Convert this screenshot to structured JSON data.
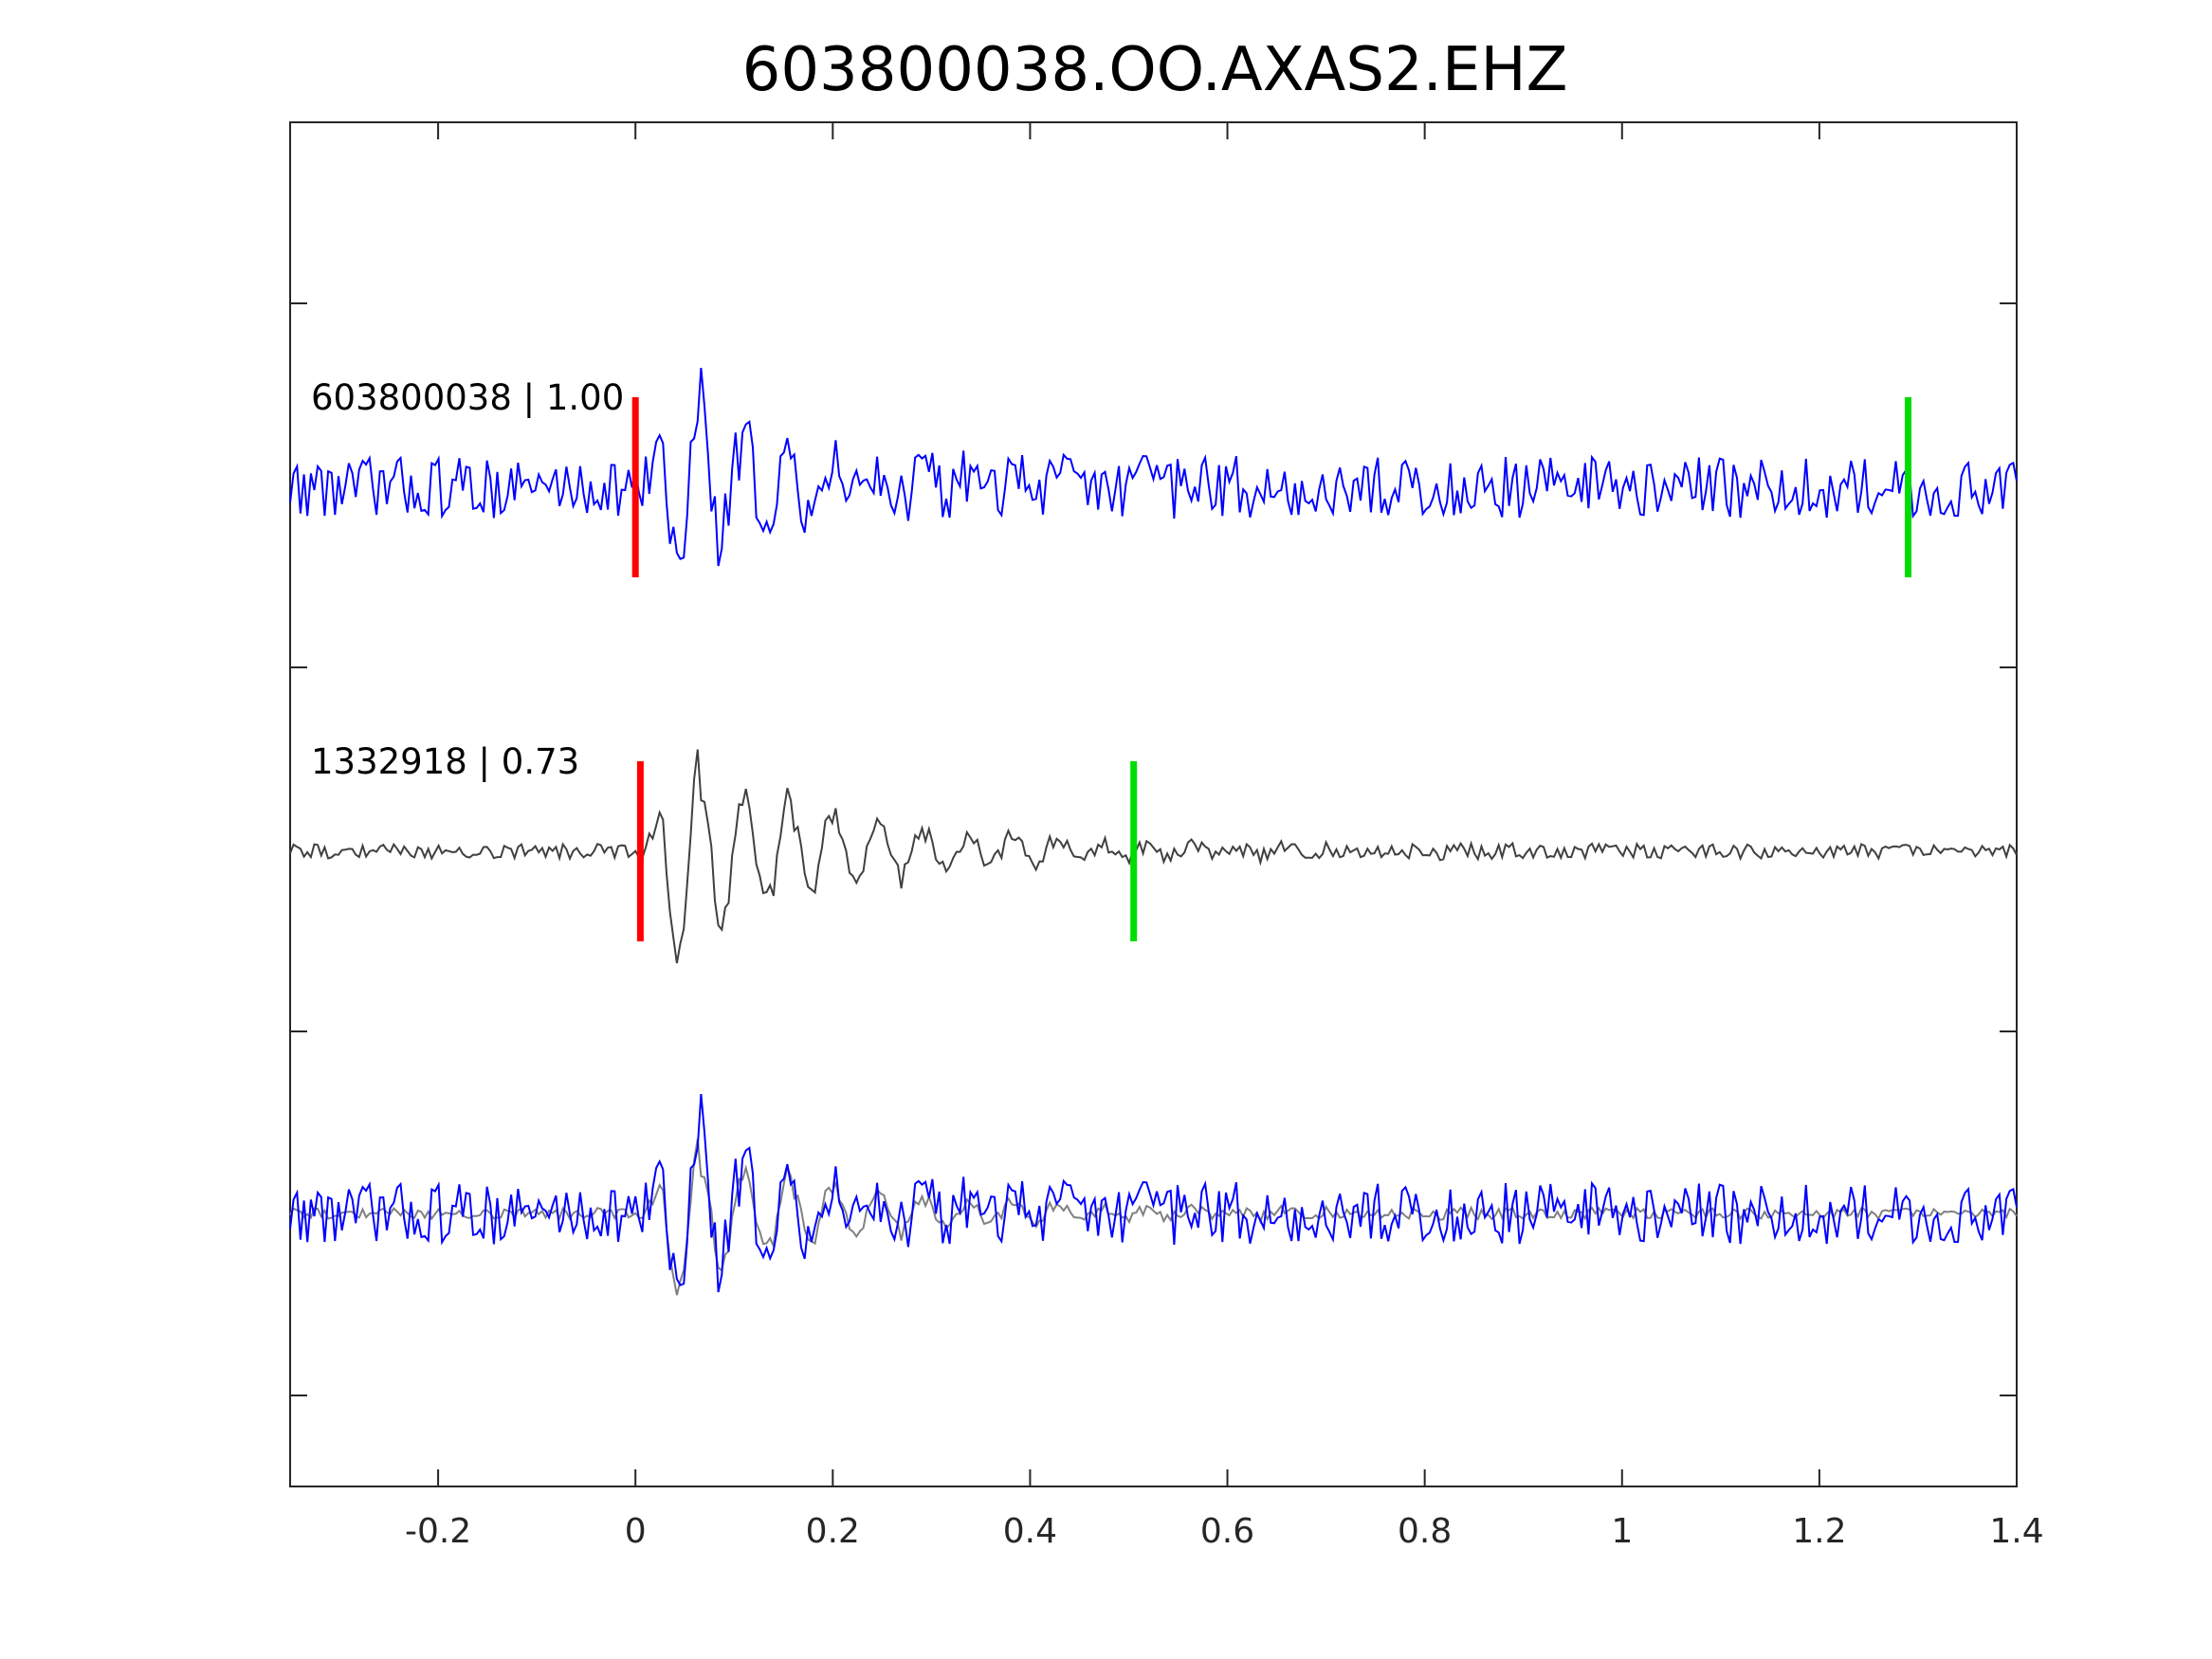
{
  "chart_data": {
    "type": "line",
    "title": "603800038.OO.AXAS2.EHZ",
    "xlabel": "",
    "ylabel": "",
    "xlim": [
      -0.35,
      1.4
    ],
    "x_ticks": [
      -0.2,
      0,
      0.2,
      0.4,
      0.6,
      0.8,
      1,
      1.2,
      1.4
    ],
    "x_tick_labels": [
      "-0.2",
      "0",
      "0.2",
      "0.4",
      "0.6",
      "0.8",
      "1",
      "1.2",
      "1.4"
    ],
    "grid": false,
    "panels": [
      {
        "label": "603800038 | 1.00",
        "trace_color": "#0000ff",
        "p_pick": 0.0,
        "s_pick": 1.29,
        "duration": 1.75
      },
      {
        "label": "1332918 | 0.73",
        "trace_color": "#404040",
        "p_pick": 0.005,
        "s_pick": 0.505,
        "duration": 1.75
      },
      {
        "label": "",
        "overlay": true,
        "trace_colors": [
          "#0000ff",
          "#808080"
        ]
      }
    ],
    "pick_colors": {
      "p": "#ff0000",
      "s": "#00dd00"
    }
  }
}
